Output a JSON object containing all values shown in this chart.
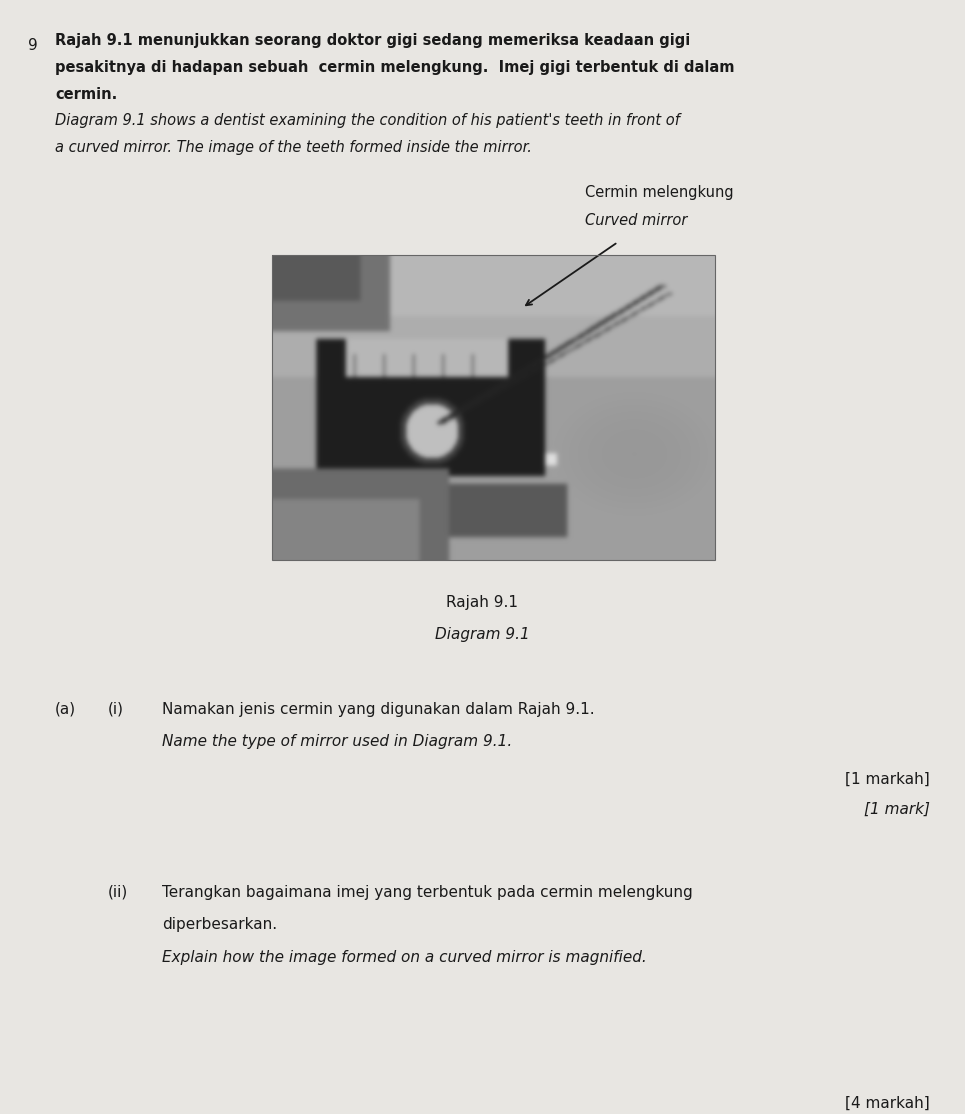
{
  "bg_color": "#e8e6e2",
  "text_color": "#1a1a1a",
  "page_width": 9.65,
  "page_height": 11.14,
  "question_number": "9",
  "label_malay": "Cermin melengkung",
  "label_english": "Curved mirror",
  "caption_malay": "Rajah 9.1",
  "caption_english": "Diagram 9.1",
  "qa_label": "(a)",
  "qi_label": "(i)",
  "q1_malay": "Namakan jenis cermin yang digunakan dalam Rajah 9.1.",
  "q1_english": "Name the type of mirror used in Diagram 9.1.",
  "marks1_malay": "[1 markah]",
  "marks1_english": "[1 mark]",
  "qii_label": "(ii)",
  "q2_malay_line1": "Terangkan bagaimana imej yang terbentuk pada cermin melengkung",
  "q2_malay_line2": "diperbesarkan.",
  "q2_english": "Explain how the image formed on a curved mirror is magnified.",
  "marks2_malay": "[4 markah]"
}
